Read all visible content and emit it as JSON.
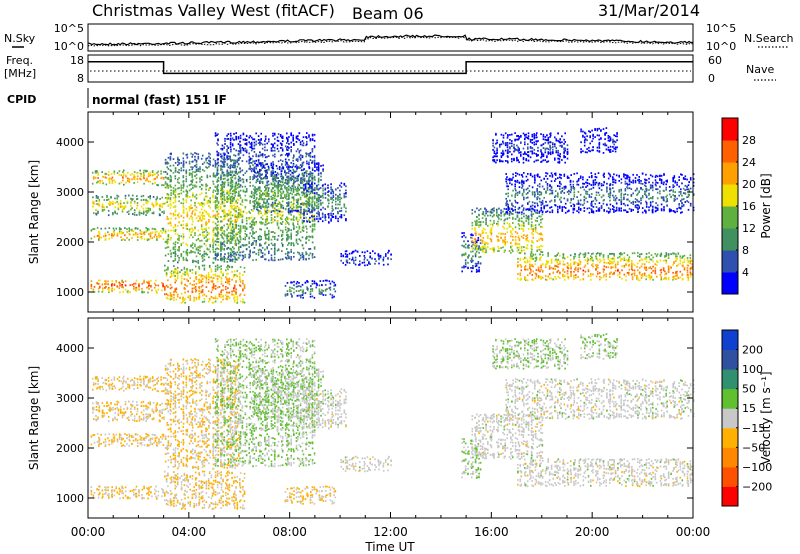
{
  "header": {
    "station": "Christmas Valley West (fitACF)",
    "beam": "Beam 06",
    "date": "31/Mar/2014"
  },
  "noise_panel": {
    "left_label": "N.Sky",
    "right_label": "N.Search",
    "ticks_left": [
      "10^5",
      "10^0"
    ],
    "ticks_right": [
      "10^5",
      "10^0"
    ]
  },
  "freq_panel": {
    "left_label_line1": "Freq.",
    "left_label_line2": "[MHz]",
    "right_label": "Nave",
    "ticks_left": [
      "18",
      "8"
    ],
    "ticks_right": [
      "60",
      "0"
    ],
    "freq_mhz": [
      {
        "t": 0,
        "v": 15.5
      },
      {
        "t": 3.0,
        "v": 15.5
      },
      {
        "t": 3.0,
        "v": 11.2
      },
      {
        "t": 15.0,
        "v": 11.2
      },
      {
        "t": 15.0,
        "v": 15.5
      },
      {
        "t": 24,
        "v": 15.5
      }
    ]
  },
  "cpid": {
    "label": "CPID",
    "mode": "normal (fast) 151 IF"
  },
  "chart_data": [
    {
      "type": "heatmap",
      "parameter": "power",
      "ylabel": "Slant Range [km]",
      "yticks": [
        1000,
        2000,
        3000,
        4000
      ],
      "ylim": [
        600,
        4600
      ],
      "xlim": [
        0,
        24
      ],
      "colorbar": {
        "label": "Power [dB]",
        "ticks": [
          "28",
          "24",
          "20",
          "16",
          "12",
          "8",
          "4"
        ],
        "colors": [
          "#0000ff",
          "#3050b0",
          "#409060",
          "#60b040",
          "#f0e000",
          "#ffa000",
          "#ff6000",
          "#ff0000"
        ]
      }
    },
    {
      "type": "heatmap",
      "parameter": "velocity",
      "ylabel": "Slant Range [km]",
      "yticks": [
        1000,
        2000,
        3000,
        4000
      ],
      "ylim": [
        600,
        4600
      ],
      "xlim": [
        0,
        24
      ],
      "xlabel": "Time UT",
      "xticks": [
        "00:00",
        "04:00",
        "08:00",
        "12:00",
        "16:00",
        "20:00",
        "00:00"
      ],
      "colorbar": {
        "label": "Velocity [m s⁻¹]",
        "ticks": [
          "200",
          "100",
          "50",
          "15",
          "−15",
          "−50",
          "−100",
          "−200"
        ],
        "colors": [
          "#ff0000",
          "#ff5000",
          "#ff8800",
          "#ffb000",
          "#c8c8c8",
          "#60c030",
          "#309070",
          "#3050a0",
          "#1040d0"
        ]
      }
    }
  ]
}
